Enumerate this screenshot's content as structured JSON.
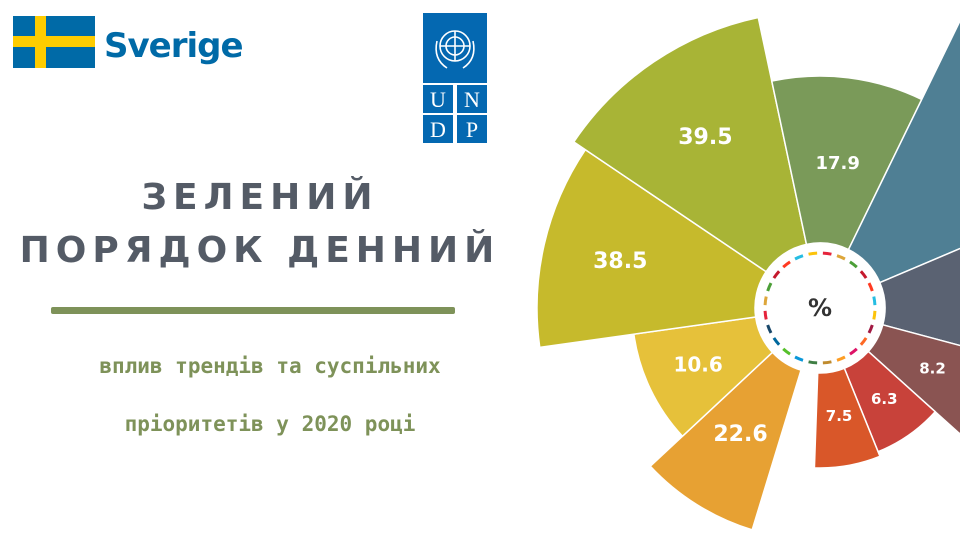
{
  "header": {
    "sweden_logo_text": "Sverige",
    "undp_logo_text": [
      "U",
      "N",
      "D",
      "P"
    ]
  },
  "title": {
    "line1": "ЗЕЛЕНИЙ",
    "line2": "ПОРЯДОК ДЕННИЙ"
  },
  "subtitle": {
    "line1": "вплив трендів та суспільних",
    "line2": "пріоритетів у 2020 році"
  },
  "colors": {
    "title": "#545b66",
    "accent_green": "#7e9259",
    "sweden_blue": "#006aa7",
    "sweden_yellow": "#fecc00",
    "undp_blue": "#0468b1"
  },
  "chart_data": {
    "type": "radial-bar",
    "center_label": "%",
    "slices": [
      {
        "value": 22.6,
        "label": "22.6",
        "color": "#e7a133"
      },
      {
        "value": 10.6,
        "label": "10.6",
        "color": "#e6c13a"
      },
      {
        "value": 38.5,
        "label": "38.5",
        "color": "#c6ba2c"
      },
      {
        "value": 39.5,
        "label": "39.5",
        "color": "#a8b436"
      },
      {
        "value": 17.9,
        "label": "17.9",
        "color": "#7a9a59"
      },
      {
        "value": null,
        "label": "",
        "color": "#4f7f94"
      },
      {
        "value": null,
        "label": "",
        "color": "#5a6272"
      },
      {
        "value": 8.2,
        "label": "8.2",
        "color": "#8a5452"
      },
      {
        "value": 6.3,
        "label": "6.3",
        "color": "#c8423a"
      },
      {
        "value": 7.5,
        "label": "7.5",
        "color": "#d95729"
      }
    ]
  }
}
